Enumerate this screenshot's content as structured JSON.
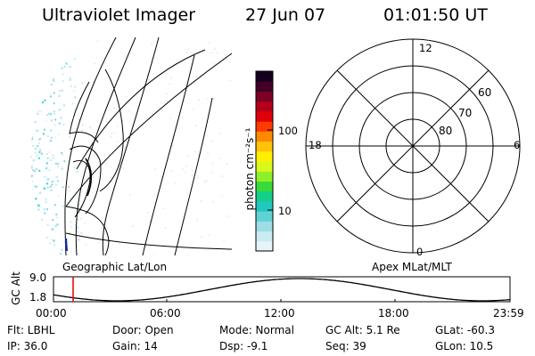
{
  "header": {
    "instrument": "Ultraviolet Imager",
    "date": "27 Jun 07",
    "time": "01:01:50 UT"
  },
  "geo_panel": {
    "label": "Geographic Lat/Lon"
  },
  "colorbar": {
    "label": "photon cm⁻²s⁻¹",
    "ticks": [
      {
        "label": "100",
        "value": 100
      },
      {
        "label": "10",
        "value": 10
      }
    ],
    "colors": [
      "#e6f4f8",
      "#c9ecf2",
      "#9fdde6",
      "#5fd2d4",
      "#22c8c0",
      "#14cf8a",
      "#37dc3a",
      "#8ef02a",
      "#d8f81c",
      "#fff000",
      "#ffc20a",
      "#ff8a00",
      "#ff3b00",
      "#e0000a",
      "#b40018",
      "#7c0024",
      "#430026",
      "#14001e"
    ]
  },
  "polar_panel": {
    "label": "Apex MLat/MLT",
    "mlt_labels": {
      "top": "12",
      "bottom": "0",
      "left": "18",
      "right": "6"
    },
    "lat_labels": [
      "60",
      "70",
      "80"
    ]
  },
  "altitude_strip": {
    "ylabel": "GC Alt",
    "ymax": "9.0",
    "ymin": "1.8",
    "xticks": [
      "00:00",
      "06:00",
      "12:00",
      "18:00",
      "23:59"
    ],
    "current_time_hours": 1.03
  },
  "footer": {
    "flt": "Flt: LBHL",
    "ip": "IP: 36.0",
    "door": "Door: Open",
    "gain": "Gain: 14",
    "mode": "Mode: Normal",
    "dsp": "Dsp:    -9.1",
    "gc_alt": "GC Alt: 5.1 Re",
    "seq": "Seq: 39",
    "glat": "GLat:  -60.3",
    "glon": "GLon:   10.5"
  }
}
